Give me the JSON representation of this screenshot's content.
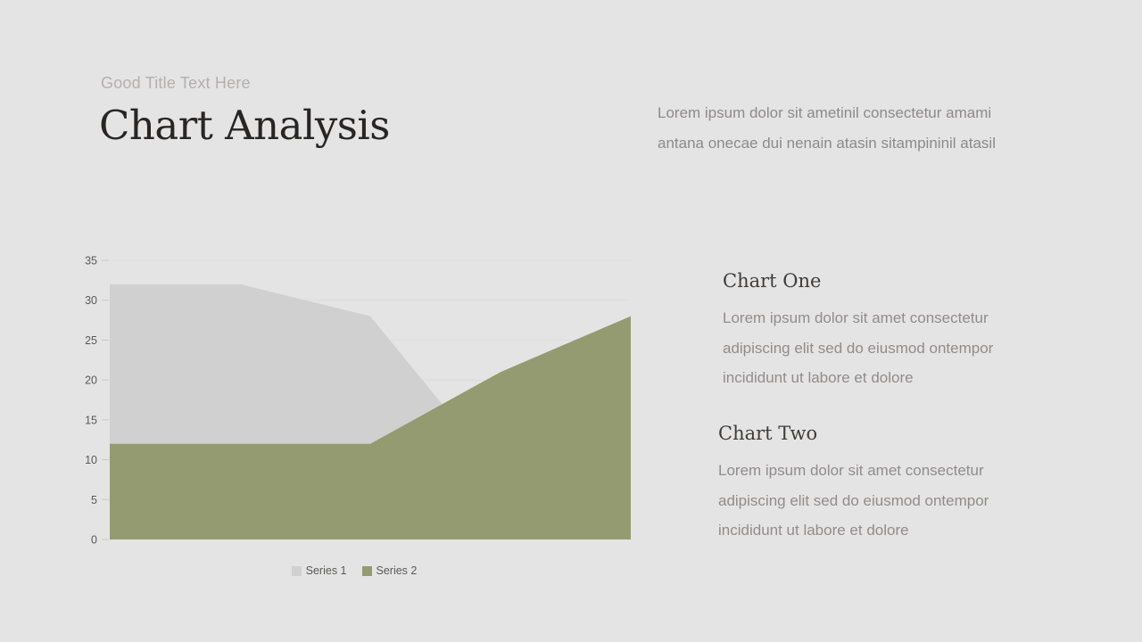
{
  "slide": {
    "eyebrow": "Good Title Text Here",
    "title": "Chart Analysis",
    "intro": "Lorem ipsum dolor sit ametinil consectetur amami antana onecae dui nenain atasin sitampininil atasil"
  },
  "chart_data": {
    "type": "area",
    "title": "",
    "series": [
      {
        "name": "Series 1",
        "color": "#d1d0d0",
        "values": [
          32,
          32,
          28,
          8,
          5
        ]
      },
      {
        "name": "Series 2",
        "color": "#959b70",
        "values": [
          12,
          12,
          12,
          21,
          28
        ]
      }
    ],
    "yticks": [
      0,
      5,
      10,
      15,
      20,
      25,
      30,
      35
    ],
    "ylim": [
      0,
      35
    ],
    "grid": true,
    "legend_position": "bottom",
    "x_tick_labels": []
  },
  "sections": [
    {
      "heading": "Chart One",
      "body": "Lorem ipsum dolor sit amet consectetur adipiscing elit sed do eiusmod ontempor incididunt ut labore et dolore"
    },
    {
      "heading": "Chart Two",
      "body": "Lorem ipsum dolor sit amet consectetur adipiscing elit sed do eiusmod ontempor incididunt ut labore et dolore"
    }
  ],
  "colors": {
    "background": "#e5e4e4",
    "series1": "#d1d0d0",
    "series2": "#959b70",
    "grid": "#dcdbdb",
    "tick": "#c8c7c6",
    "axis_text": "#595958",
    "title_text": "#272625",
    "eyebrow_text": "#b2b0af",
    "heading_text": "#3e3d3c",
    "body_text": "#8f8d8c"
  }
}
